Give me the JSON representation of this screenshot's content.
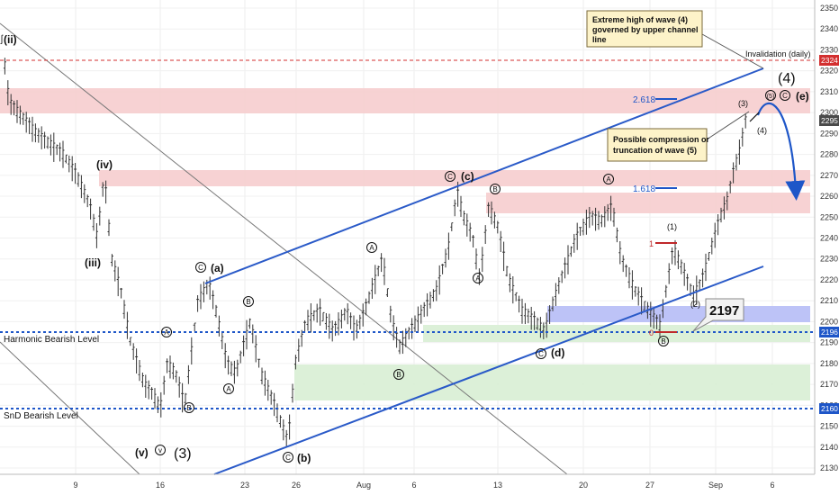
{
  "chart_data": {
    "type": "candlestick",
    "y_axis": {
      "range": [
        2127,
        2353
      ],
      "ticks": [
        2130,
        2140,
        2150,
        2160,
        2170,
        2180,
        2190,
        2200,
        2210,
        2220,
        2230,
        2240,
        2250,
        2260,
        2270,
        2280,
        2290,
        2300,
        2310,
        2320,
        2330,
        2340,
        2350
      ]
    },
    "x_axis": {
      "ticks": [
        "9",
        "16",
        "23",
        "26",
        "Aug",
        "6",
        "13",
        "20",
        "27",
        "Sep",
        "6"
      ]
    },
    "price_tags": [
      {
        "value": 2324,
        "label": "2324",
        "color": "#d32f2f"
      },
      {
        "value": 2295,
        "label": "2295",
        "color": "#4a4a4a"
      },
      {
        "value": 2196,
        "label": "2196",
        "color": "#1e56c8"
      },
      {
        "value": 2160,
        "label": "2160",
        "color": "#1e56c8"
      }
    ],
    "levels": [
      {
        "name": "Harmonic Bearish Level",
        "value": 2196,
        "color": "#1e56c8"
      },
      {
        "name": "SnD Bearish Level",
        "value": 2160,
        "color": "#1e56c8"
      },
      {
        "name": "Invalidation (daily)",
        "value": 2324,
        "color": "#d32f2f"
      }
    ],
    "zones": [
      {
        "kind": "resistance",
        "from": 2300,
        "to": 2315,
        "color": "#f4c7c8"
      },
      {
        "kind": "resistance",
        "from": 2265,
        "to": 2275,
        "color": "#f4c7c8"
      },
      {
        "kind": "resistance",
        "from": 2252,
        "to": 2264,
        "color": "#f4c7c8"
      },
      {
        "kind": "harmonic",
        "from": 2200,
        "to": 2208,
        "color": "#b7bdf6"
      },
      {
        "kind": "support",
        "from": 2194,
        "to": 2200,
        "color": "#d6ecd2"
      },
      {
        "kind": "support",
        "from": 2162,
        "to": 2182,
        "color": "#d6ecd2"
      }
    ],
    "fib_levels": [
      {
        "label": "2.618",
        "value": 2308
      },
      {
        "label": "1.618",
        "value": 2263
      }
    ],
    "wave_labels": [
      "(ii)",
      "(iv)",
      "(iii)",
      "(v)",
      "v",
      "(3)",
      "(a)",
      "(b)",
      "(c)",
      "(d)",
      "(e)",
      "(4)",
      "A",
      "B",
      "C",
      "(1)",
      "(2)",
      "(3)",
      "(4)",
      "(5)",
      "1",
      "0"
    ],
    "callouts": [
      {
        "text": "Extreme high of wave (4) governed by upper channel line"
      },
      {
        "text": "Possible compression or truncation of wave (5)"
      },
      {
        "text": "2197"
      }
    ]
  },
  "texts": {
    "harmonic_label": "Harmonic Bearish Level",
    "snd_label": "SnD Bearish Level",
    "invalidation": "Invalidation (daily)",
    "fib_2618": "2.618",
    "fib_1618": "1.618",
    "callout_top_l1": "Extreme high of wave (4)",
    "callout_top_l2": "governed by upper channel",
    "callout_top_l3": "line",
    "callout_mid_l1": "Possible compression or",
    "callout_mid_l2": "truncation of wave (5)",
    "price_box": "2197",
    "w_ii": "(ii)",
    "w_iv": "(iv)",
    "w_iii": "(iii)",
    "w_v": "(v)",
    "w_v_small": "v",
    "w_3": "(3)",
    "w_a": "(a)",
    "w_b": "(b)",
    "w_c": "(c)",
    "w_d": "(d)",
    "w_e": "(e)",
    "w_4_big": "(4)",
    "w_A": "A",
    "w_B": "B",
    "w_C": "C",
    "w_1p": "(1)",
    "w_2p": "(2)",
    "w_3p": "(3)",
    "w_4p": "(4)",
    "w_5p": "(5)",
    "w_one": "1",
    "w_zero": "0"
  }
}
